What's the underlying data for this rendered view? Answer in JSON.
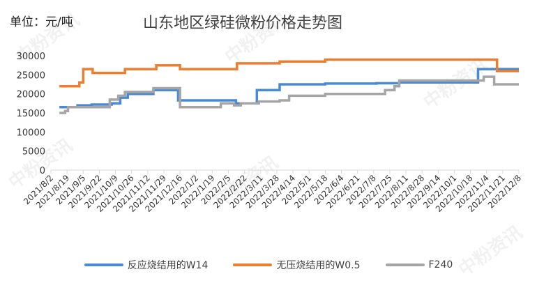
{
  "unit_label": "单位：元/吨",
  "watermark": "中粉资讯",
  "chart_data": {
    "type": "line",
    "step": true,
    "title": "山东地区绿硅微粉价格走势图",
    "x_start": "2021/8/2",
    "x_end": "2022/12/8",
    "x_tick_labels": [
      "2021/8/2",
      "2021/8/19",
      "2021/9/5",
      "2021/9/22",
      "2021/10/9",
      "2021/10/26",
      "2021/11/12",
      "2021/11/29",
      "2021/12/16",
      "2022/1/2",
      "2022/1/19",
      "2022/2/5",
      "2022/2/22",
      "2022/3/11",
      "2022/3/28",
      "2022/4/14",
      "2022/5/1",
      "2022/5/18",
      "2022/6/4",
      "2022/6/21",
      "2022/7/8",
      "2022/7/25",
      "2022/8/11",
      "2022/8/28",
      "2022/9/14",
      "2022/10/1",
      "2022/10/18",
      "2022/11/4",
      "2022/11/21",
      "2022/12/8"
    ],
    "ylim": [
      0,
      30000
    ],
    "y_ticks": [
      0,
      5000,
      10000,
      15000,
      20000,
      25000,
      30000
    ],
    "grid": false,
    "legend_position": "bottom",
    "series": [
      {
        "name": "反应烧结用的W14",
        "color": "#4a8ad4",
        "points": [
          [
            "2021/8/11",
            16500
          ],
          [
            "2021/8/22",
            16500
          ],
          [
            "2021/8/30",
            17000
          ],
          [
            "2021/9/14",
            17200
          ],
          [
            "2021/10/5",
            17500
          ],
          [
            "2021/10/14",
            19000
          ],
          [
            "2021/10/22",
            20000
          ],
          [
            "2021/11/18",
            21000
          ],
          [
            "2021/12/14",
            18300
          ],
          [
            "2022/2/13",
            17500
          ],
          [
            "2022/3/7",
            21000
          ],
          [
            "2022/3/31",
            22500
          ],
          [
            "2022/5/18",
            22700
          ],
          [
            "2022/7/11",
            22800
          ],
          [
            "2022/8/4",
            23000
          ],
          [
            "2022/10/26",
            26500
          ],
          [
            "2022/12/8",
            26500
          ]
        ]
      },
      {
        "name": "无压烧结用的W0.5",
        "color": "#ed7d31",
        "points": [
          [
            "2021/8/11",
            22000
          ],
          [
            "2021/8/22",
            22000
          ],
          [
            "2021/9/1",
            23000
          ],
          [
            "2021/9/5",
            26500
          ],
          [
            "2021/9/15",
            25500
          ],
          [
            "2021/10/19",
            26500
          ],
          [
            "2021/11/21",
            27500
          ],
          [
            "2021/12/16",
            26500
          ],
          [
            "2022/2/14",
            28000
          ],
          [
            "2022/3/31",
            28500
          ],
          [
            "2022/5/18",
            29000
          ],
          [
            "2022/11/15",
            26000
          ],
          [
            "2022/12/8",
            26000
          ]
        ]
      },
      {
        "name": "F240",
        "color": "#a5a5a5",
        "points": [
          [
            "2021/8/11",
            15000
          ],
          [
            "2021/8/17",
            15500
          ],
          [
            "2021/8/20",
            16500
          ],
          [
            "2021/9/15",
            16500
          ],
          [
            "2021/10/3",
            18500
          ],
          [
            "2021/10/12",
            19500
          ],
          [
            "2021/10/19",
            20500
          ],
          [
            "2021/11/18",
            21500
          ],
          [
            "2021/12/16",
            16500
          ],
          [
            "2022/1/28",
            17500
          ],
          [
            "2022/2/11",
            17000
          ],
          [
            "2022/2/18",
            17500
          ],
          [
            "2022/2/27",
            17500
          ],
          [
            "2022/3/9",
            18000
          ],
          [
            "2022/3/31",
            18300
          ],
          [
            "2022/4/10",
            19500
          ],
          [
            "2022/5/18",
            20000
          ],
          [
            "2022/7/6",
            20000
          ],
          [
            "2022/7/20",
            21000
          ],
          [
            "2022/7/30",
            22000
          ],
          [
            "2022/8/4",
            23500
          ],
          [
            "2022/11/1",
            24500
          ],
          [
            "2022/11/12",
            22500
          ],
          [
            "2022/12/8",
            22500
          ]
        ]
      }
    ]
  }
}
